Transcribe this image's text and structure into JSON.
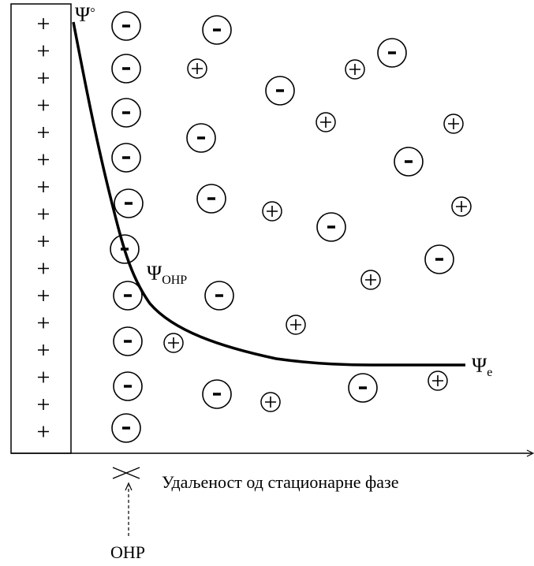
{
  "labels": {
    "psi_surface": {
      "base": "Ψ",
      "sup": "°"
    },
    "psi_ohp": {
      "base": "Ψ",
      "sub": "OHP"
    },
    "psi_e": {
      "base": "Ψ",
      "sub": "e"
    },
    "x_axis": "Удаљеност од стационарне фазе",
    "ohp": "OHP"
  }
}
